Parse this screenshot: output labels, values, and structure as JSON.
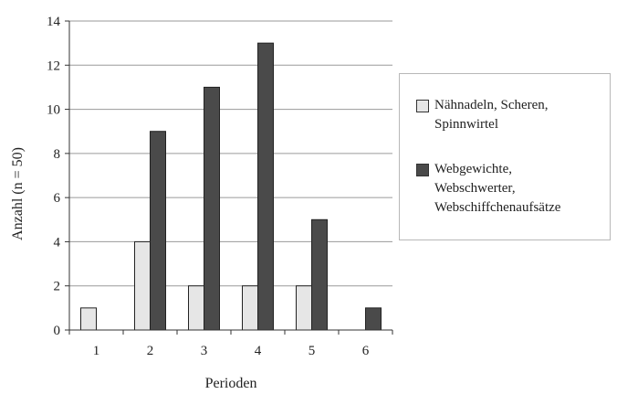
{
  "chart_data": {
    "type": "bar",
    "categories": [
      "1",
      "2",
      "3",
      "4",
      "5",
      "6"
    ],
    "series": [
      {
        "name": "Nähnadeln, Scheren, Spinnwirtel",
        "values": [
          1,
          4,
          2,
          2,
          2,
          0
        ],
        "color": "#e6e6e6"
      },
      {
        "name": "Webgewichte, Webschwerter, Webschiffchenaufsätze",
        "values": [
          0,
          9,
          11,
          13,
          5,
          1
        ],
        "color": "#4a4a4a"
      }
    ],
    "xlabel": "Perioden",
    "ylabel": "Anzahl (n = 50)",
    "ylim": [
      0,
      14
    ],
    "yticks": [
      0,
      2,
      4,
      6,
      8,
      10,
      12,
      14
    ],
    "grid": true,
    "legend_position": "right"
  },
  "legend": {
    "items": [
      {
        "label": "Nähnadeln, Scheren,\nSpinnwirtel",
        "color": "#e6e6e6"
      },
      {
        "label": "Webgewichte,\nWebschwerter,\nWebschiffchenaufsätze",
        "color": "#4a4a4a"
      }
    ]
  }
}
